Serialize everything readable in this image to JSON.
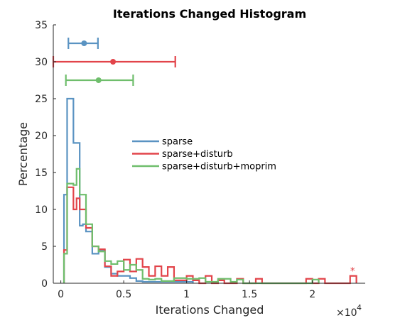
{
  "chart_data": {
    "type": "histogram",
    "title": "Iterations Changed Histogram",
    "xlabel": "Iterations Changed",
    "ylabel": "Percentage",
    "x_multiplier_label": "×10",
    "x_multiplier_exponent": "4",
    "xlim": [
      -600,
      24200
    ],
    "ylim": [
      0,
      35
    ],
    "x_ticks": [
      0,
      5000,
      10000,
      15000,
      20000
    ],
    "x_tick_labels": [
      "0",
      "0.5",
      "1",
      "1.5",
      "2"
    ],
    "y_ticks": [
      0,
      5,
      10,
      15,
      20,
      25,
      30,
      35
    ],
    "y_tick_labels": [
      "0",
      "5",
      "10",
      "15",
      "20",
      "25",
      "30",
      "35"
    ],
    "grid": false,
    "legend_position": "center",
    "series": [
      {
        "name": "sparse",
        "color": "#5a93c2",
        "bins": [
          [
            250,
            12
          ],
          [
            500,
            25
          ],
          [
            1000,
            19
          ],
          [
            1500,
            7.8
          ],
          [
            1750,
            8
          ],
          [
            2000,
            7
          ],
          [
            2500,
            4
          ],
          [
            3000,
            4.5
          ],
          [
            3500,
            2.2
          ],
          [
            4000,
            1.3
          ],
          [
            4500,
            1.0
          ],
          [
            5000,
            1.0
          ],
          [
            5500,
            0.7
          ],
          [
            6000,
            0.3
          ],
          [
            6500,
            0.2
          ],
          [
            7500,
            0.2
          ],
          [
            9000,
            0.2
          ],
          [
            10500,
            0
          ]
        ]
      },
      {
        "name": "sparse+disturb",
        "color": "#e2444a",
        "bins": [
          [
            250,
            4.5
          ],
          [
            500,
            13
          ],
          [
            1000,
            10
          ],
          [
            1250,
            11.5
          ],
          [
            1500,
            10
          ],
          [
            2000,
            7.5
          ],
          [
            2500,
            5
          ],
          [
            3000,
            4.6
          ],
          [
            3500,
            2.3
          ],
          [
            4000,
            1.0
          ],
          [
            4500,
            1.6
          ],
          [
            5000,
            3.2
          ],
          [
            5500,
            1.6
          ],
          [
            6000,
            3.3
          ],
          [
            6500,
            2.2
          ],
          [
            7000,
            1.0
          ],
          [
            7500,
            2.3
          ],
          [
            8000,
            1.0
          ],
          [
            8500,
            2.2
          ],
          [
            9000,
            0.4
          ],
          [
            9500,
            0.4
          ],
          [
            10000,
            1.0
          ],
          [
            10500,
            0.4
          ],
          [
            11000,
            0
          ],
          [
            11500,
            1.0
          ],
          [
            12000,
            0
          ],
          [
            12500,
            0.4
          ],
          [
            13000,
            0
          ],
          [
            14000,
            0.6
          ],
          [
            14500,
            0
          ],
          [
            15500,
            0.6
          ],
          [
            16000,
            0
          ],
          [
            19500,
            0.6
          ],
          [
            20000,
            0
          ],
          [
            20500,
            0.6
          ],
          [
            21000,
            0
          ],
          [
            23000,
            1.0
          ],
          [
            23500,
            0
          ]
        ]
      },
      {
        "name": "sparse+disturb+moprim",
        "color": "#6fbe6c",
        "bins": [
          [
            250,
            4
          ],
          [
            500,
            13.5
          ],
          [
            1000,
            13.3
          ],
          [
            1250,
            15.5
          ],
          [
            1500,
            12
          ],
          [
            2000,
            8
          ],
          [
            2500,
            5
          ],
          [
            3000,
            4.3
          ],
          [
            3500,
            3.0
          ],
          [
            4000,
            2.6
          ],
          [
            4500,
            3.0
          ],
          [
            5000,
            1.8
          ],
          [
            5500,
            2.5
          ],
          [
            6000,
            1.8
          ],
          [
            6500,
            0.6
          ],
          [
            7000,
            0.5
          ],
          [
            7500,
            0.6
          ],
          [
            8000,
            0.3
          ],
          [
            9000,
            0.7
          ],
          [
            10000,
            0.6
          ],
          [
            11000,
            0.7
          ],
          [
            11500,
            0.2
          ],
          [
            12500,
            0.6
          ],
          [
            13500,
            0.2
          ],
          [
            14000,
            0.5
          ],
          [
            14500,
            0
          ],
          [
            20000,
            0.5
          ],
          [
            20500,
            0
          ]
        ]
      }
    ],
    "error_bars": [
      {
        "series": "sparse",
        "center": 1850,
        "low": 600,
        "high": 2950,
        "y": 32.5,
        "color": "#5a93c2"
      },
      {
        "series": "sparse+disturb",
        "center": 4150,
        "low": -600,
        "high": 9100,
        "y": 30,
        "color": "#e2444a"
      },
      {
        "series": "sparse+disturb+moprim",
        "center": 3000,
        "low": 400,
        "high": 5750,
        "y": 27.5,
        "color": "#6fbe6c"
      }
    ],
    "annotations": [
      {
        "text": "*",
        "x": 23200,
        "y": 1.2,
        "color": "#e2444a"
      }
    ]
  }
}
